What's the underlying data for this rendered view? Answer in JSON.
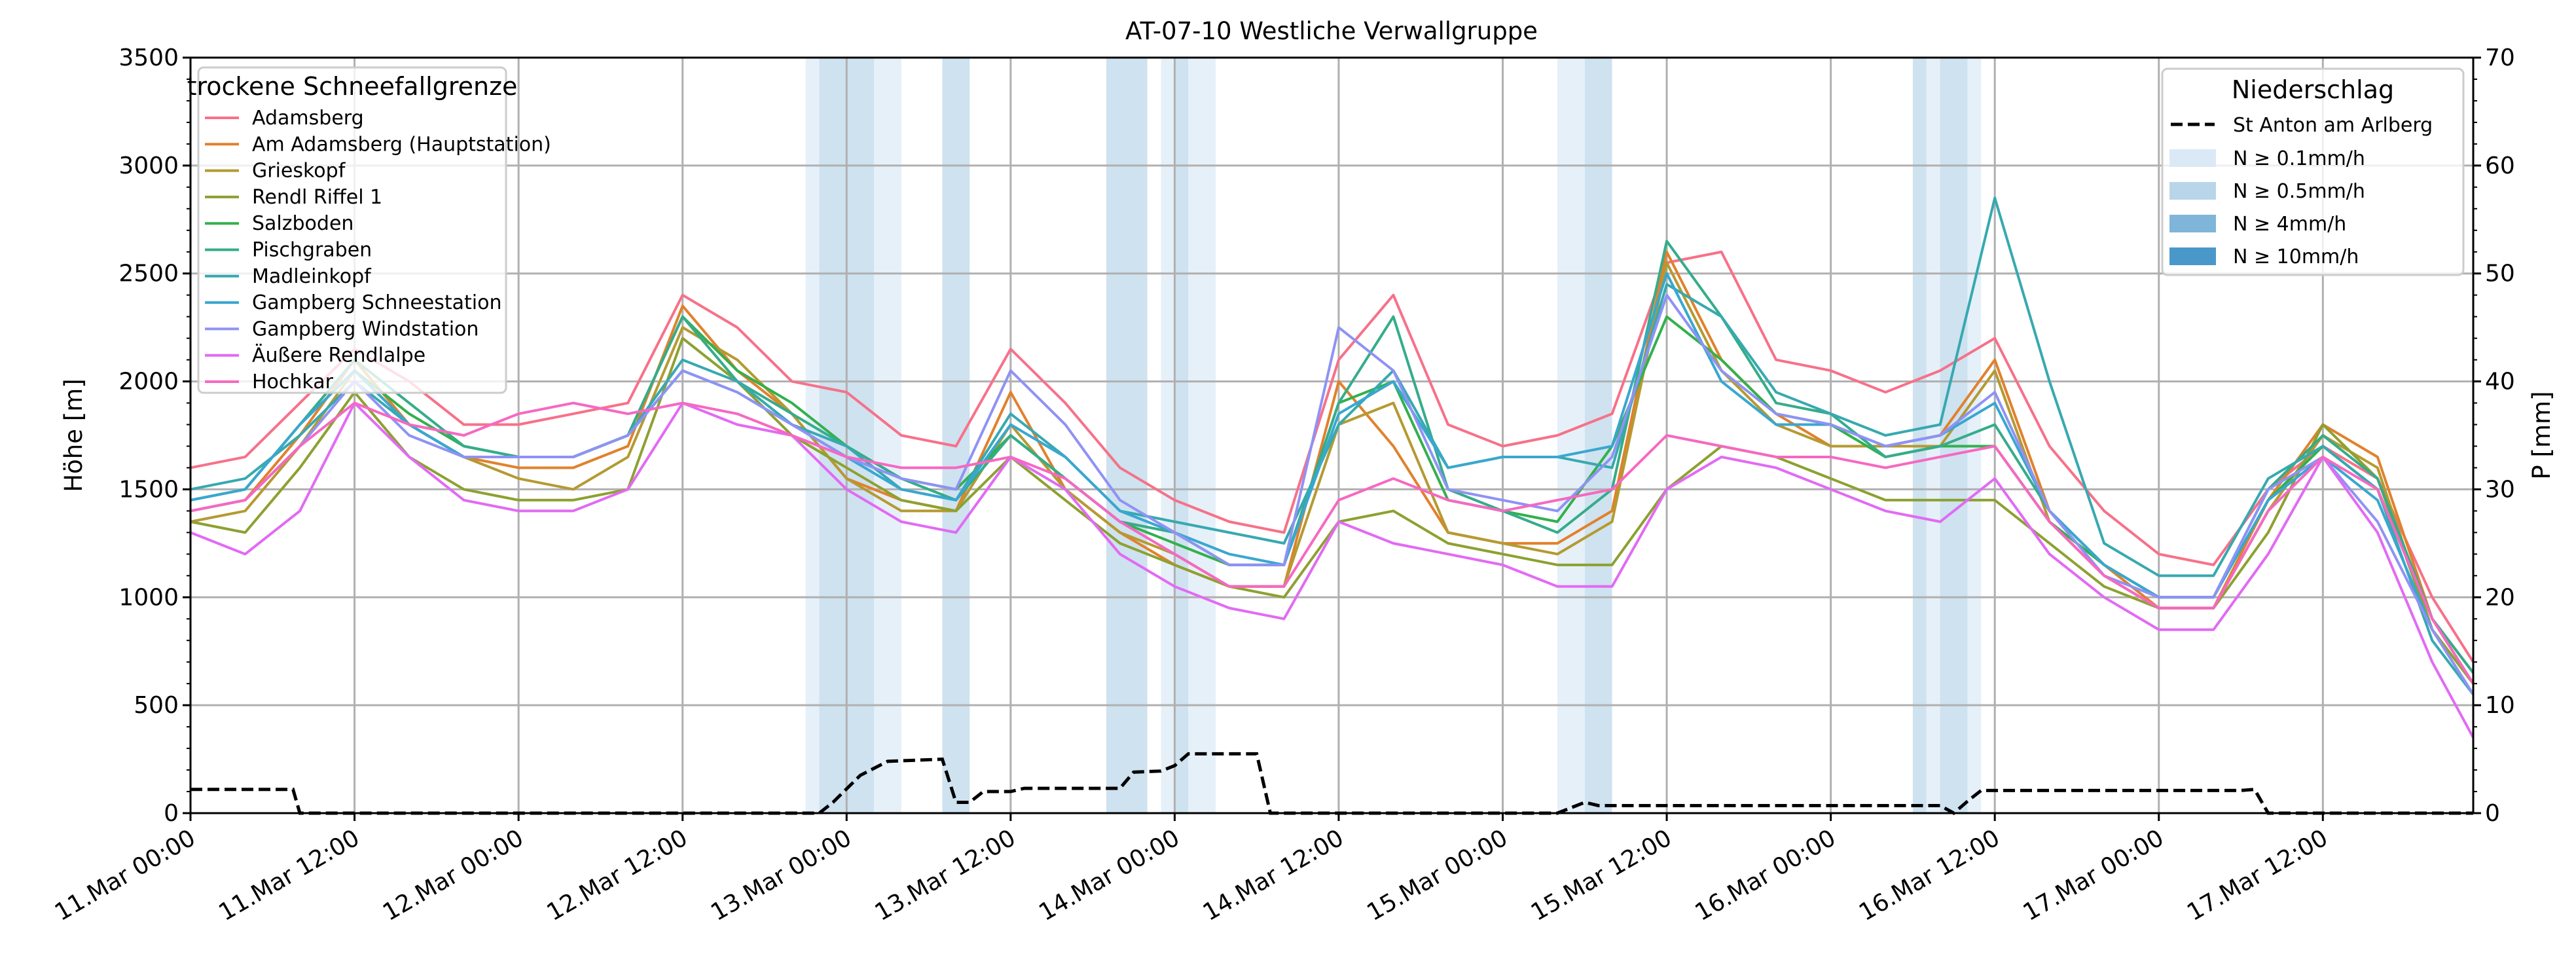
{
  "chart_data": {
    "type": "line",
    "title": "AT-07-10 Westliche Verwallgruppe",
    "xlabel": "",
    "ylabel": "Höhe [m]",
    "y2label": "P [mm]",
    "ylim": [
      0,
      3500
    ],
    "y2lim": [
      0,
      70
    ],
    "xlim_hours_from_start": [
      0,
      167
    ],
    "grid": true,
    "yticks": [
      0,
      500,
      1000,
      1500,
      2000,
      2500,
      3000,
      3500
    ],
    "y2ticks": [
      0,
      10,
      20,
      30,
      40,
      50,
      60,
      70
    ],
    "xtick_labels": [
      "11.Mar 00:00",
      "11.Mar 12:00",
      "12.Mar 00:00",
      "12.Mar 12:00",
      "13.Mar 00:00",
      "13.Mar 12:00",
      "14.Mar 00:00",
      "14.Mar 12:00",
      "15.Mar 00:00",
      "15.Mar 12:00",
      "16.Mar 00:00",
      "16.Mar 12:00",
      "17.Mar 00:00",
      "17.Mar 12:00"
    ],
    "xtick_hours": [
      0,
      12,
      24,
      36,
      48,
      60,
      72,
      84,
      96,
      108,
      120,
      132,
      144,
      156
    ],
    "legend1": {
      "title": "trockene Schneefallgrenze",
      "placement": "upper-left"
    },
    "legend2": {
      "title": "Niederschlag",
      "placement": "upper-right"
    },
    "hours": [
      0,
      4,
      8,
      12,
      16,
      20,
      24,
      28,
      32,
      36,
      40,
      44,
      48,
      52,
      56,
      60,
      64,
      68,
      72,
      76,
      80,
      84,
      88,
      92,
      96,
      100,
      104,
      108,
      112,
      116,
      120,
      124,
      128,
      132,
      136,
      140,
      144,
      148,
      152,
      156,
      160,
      164,
      167
    ],
    "series": [
      {
        "name": "Adamsberg",
        "color": "#f77189",
        "values": [
          1600,
          1650,
          1900,
          2150,
          2000,
          1800,
          1800,
          1850,
          1900,
          2400,
          2250,
          2000,
          1950,
          1750,
          1700,
          2150,
          1900,
          1600,
          1450,
          1350,
          1300,
          2100,
          2400,
          1800,
          1700,
          1750,
          1850,
          2550,
          2600,
          2100,
          2050,
          1950,
          2050,
          2200,
          1700,
          1400,
          1200,
          1150,
          1500,
          1700,
          1550,
          1000,
          700
        ]
      },
      {
        "name": "Am Adamsberg (Hauptstation)",
        "color": "#e1812c",
        "values": [
          1400,
          1450,
          1750,
          2100,
          1800,
          1650,
          1600,
          1600,
          1700,
          2350,
          2050,
          1850,
          1550,
          1450,
          1400,
          1950,
          1500,
          1300,
          1150,
          1050,
          1050,
          2000,
          1700,
          1300,
          1250,
          1250,
          1400,
          2600,
          2100,
          1850,
          1700,
          1700,
          1750,
          2100,
          1400,
          1150,
          950,
          950,
          1450,
          1800,
          1650,
          900,
          600
        ]
      },
      {
        "name": "Grieskopf",
        "color": "#b59a31",
        "values": [
          1350,
          1400,
          1700,
          2050,
          1800,
          1650,
          1550,
          1500,
          1650,
          2250,
          2100,
          1850,
          1550,
          1400,
          1400,
          1800,
          1500,
          1300,
          1200,
          1050,
          1050,
          1800,
          1900,
          1300,
          1250,
          1200,
          1350,
          2550,
          2050,
          1800,
          1700,
          1700,
          1700,
          2050,
          1350,
          1100,
          950,
          950,
          1400,
          1750,
          1600,
          850,
          600
        ]
      },
      {
        "name": "Rendl Riffel 1",
        "color": "#8da131",
        "values": [
          1350,
          1300,
          1600,
          1950,
          1650,
          1500,
          1450,
          1450,
          1500,
          2200,
          2000,
          1750,
          1600,
          1450,
          1400,
          1650,
          1450,
          1250,
          1150,
          1050,
          1000,
          1350,
          1400,
          1250,
          1200,
          1150,
          1150,
          1500,
          1700,
          1650,
          1550,
          1450,
          1450,
          1450,
          1250,
          1050,
          950,
          950,
          1300,
          1800,
          1550,
          850,
          600
        ]
      },
      {
        "name": "Salzboden",
        "color": "#33b04d",
        "values": [
          1450,
          1500,
          1800,
          2050,
          1850,
          1700,
          1650,
          1650,
          1750,
          2300,
          2050,
          1900,
          1700,
          1550,
          1500,
          1750,
          1550,
          1350,
          1250,
          1150,
          1150,
          1900,
          2000,
          1450,
          1400,
          1350,
          1700,
          2300,
          2100,
          1850,
          1800,
          1650,
          1700,
          1700,
          1350,
          1150,
          1000,
          1000,
          1450,
          1700,
          1500,
          900,
          650
        ]
      },
      {
        "name": "Pischgraben",
        "color": "#35ac8a",
        "values": [
          1450,
          1500,
          1800,
          2100,
          1900,
          1700,
          1650,
          1650,
          1750,
          2300,
          2000,
          1850,
          1700,
          1550,
          1450,
          1750,
          1550,
          1350,
          1300,
          1150,
          1150,
          1900,
          2300,
          1500,
          1400,
          1300,
          1500,
          2650,
          2300,
          1900,
          1850,
          1650,
          1700,
          1800,
          1400,
          1150,
          1000,
          1000,
          1500,
          1750,
          1550,
          900,
          650
        ]
      },
      {
        "name": "Madleinkopf",
        "color": "#37a9b0",
        "values": [
          1500,
          1550,
          1750,
          2000,
          1800,
          1650,
          1650,
          1650,
          1750,
          2100,
          2000,
          1800,
          1700,
          1500,
          1450,
          1850,
          1650,
          1400,
          1350,
          1300,
          1250,
          1800,
          2050,
          1600,
          1650,
          1650,
          1600,
          2450,
          2300,
          1950,
          1850,
          1750,
          1800,
          2850,
          2000,
          1250,
          1100,
          1100,
          1550,
          1700,
          1500,
          800,
          550
        ]
      },
      {
        "name": "Gampberg Schneestation",
        "color": "#39a7d0",
        "values": [
          1450,
          1500,
          1800,
          2050,
          1800,
          1650,
          1650,
          1650,
          1750,
          2050,
          1950,
          1800,
          1650,
          1500,
          1450,
          1800,
          1650,
          1400,
          1300,
          1200,
          1150,
          1850,
          2000,
          1600,
          1650,
          1650,
          1700,
          2500,
          2000,
          1800,
          1800,
          1700,
          1750,
          1900,
          1400,
          1150,
          1000,
          1000,
          1450,
          1650,
          1450,
          850,
          550
        ]
      },
      {
        "name": "Gampberg Windstation",
        "color": "#8f92f4",
        "values": [
          1400,
          1450,
          1700,
          2000,
          1750,
          1650,
          1650,
          1650,
          1750,
          2050,
          1950,
          1800,
          1650,
          1550,
          1500,
          2050,
          1800,
          1450,
          1300,
          1150,
          1150,
          2250,
          2050,
          1500,
          1450,
          1400,
          1650,
          2400,
          2050,
          1850,
          1800,
          1700,
          1750,
          1950,
          1400,
          1100,
          1000,
          1000,
          1500,
          1650,
          1350,
          850,
          550
        ]
      },
      {
        "name": "Äußere Rendlalpe",
        "color": "#e26af4",
        "values": [
          1300,
          1200,
          1400,
          1900,
          1650,
          1450,
          1400,
          1400,
          1500,
          1900,
          1800,
          1750,
          1500,
          1350,
          1300,
          1650,
          1500,
          1200,
          1050,
          950,
          900,
          1350,
          1250,
          1200,
          1150,
          1050,
          1050,
          1500,
          1650,
          1600,
          1500,
          1400,
          1350,
          1550,
          1200,
          1000,
          850,
          850,
          1200,
          1650,
          1300,
          700,
          350
        ]
      },
      {
        "name": "Hochkar",
        "color": "#f668c2",
        "values": [
          1400,
          1450,
          1700,
          1900,
          1800,
          1750,
          1850,
          1900,
          1850,
          1900,
          1850,
          1750,
          1650,
          1600,
          1600,
          1650,
          1550,
          1350,
          1200,
          1050,
          1050,
          1450,
          1550,
          1450,
          1400,
          1450,
          1500,
          1750,
          1700,
          1650,
          1650,
          1600,
          1650,
          1700,
          1350,
          1100,
          950,
          950,
          1400,
          1650,
          1500,
          900,
          600
        ]
      }
    ],
    "precip_series": {
      "name": "St Anton am Arlberg",
      "color": "#000000",
      "hours": [
        0,
        7.5,
        8,
        46,
        47,
        49,
        51,
        55,
        56,
        57,
        58,
        60,
        61,
        62,
        68,
        69,
        71,
        72,
        73,
        78,
        79,
        100,
        101,
        102,
        103,
        128,
        129,
        130,
        131,
        150,
        151,
        152,
        167
      ],
      "values": [
        2.2,
        2.2,
        0,
        0,
        1,
        3.5,
        4.8,
        5,
        1,
        1,
        2,
        2,
        2.3,
        2.3,
        2.3,
        3.8,
        3.9,
        4.4,
        5.5,
        5.5,
        0,
        0,
        0.5,
        1,
        0.7,
        0.7,
        0,
        1.1,
        2.1,
        2.1,
        2.2,
        0,
        0
      ]
    },
    "precip_legend": [
      {
        "label": "N ≥ 0.1mm/h",
        "color": "#dbe9f6"
      },
      {
        "label": "N ≥ 0.5mm/h",
        "color": "#b9d5ea"
      },
      {
        "label": "N ≥ 4mm/h",
        "color": "#7fb5d8"
      },
      {
        "label": "N ≥ 10mm/h",
        "color": "#4a97c9"
      }
    ],
    "precip_bands": [
      {
        "start": 45,
        "end": 46,
        "level": 0
      },
      {
        "start": 46,
        "end": 50,
        "level": 1
      },
      {
        "start": 50,
        "end": 52,
        "level": 0
      },
      {
        "start": 55,
        "end": 57,
        "level": 1
      },
      {
        "start": 67,
        "end": 70,
        "level": 1
      },
      {
        "start": 71,
        "end": 72,
        "level": 0
      },
      {
        "start": 72,
        "end": 73,
        "level": 1
      },
      {
        "start": 73,
        "end": 75,
        "level": 0
      },
      {
        "start": 100,
        "end": 102,
        "level": 0
      },
      {
        "start": 102,
        "end": 104,
        "level": 1
      },
      {
        "start": 126,
        "end": 127,
        "level": 1
      },
      {
        "start": 127,
        "end": 128,
        "level": 0
      },
      {
        "start": 128,
        "end": 130,
        "level": 1
      },
      {
        "start": 130,
        "end": 131,
        "level": 0
      }
    ]
  }
}
